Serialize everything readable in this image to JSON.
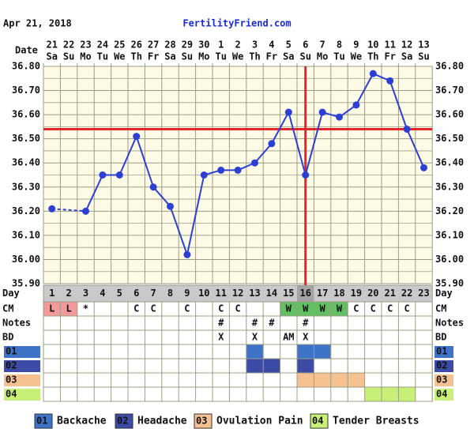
{
  "chart_data": {
    "type": "line",
    "header_date": "Apr 21, 2018",
    "site": "FertilityFriend.com",
    "date_label": "Date",
    "day_label": "Day",
    "dates": [
      "21",
      "22",
      "23",
      "24",
      "25",
      "26",
      "27",
      "28",
      "29",
      "30",
      "1",
      "2",
      "3",
      "4",
      "5",
      "6",
      "7",
      "8",
      "9",
      "10",
      "11",
      "12",
      "13"
    ],
    "weekdays": [
      "Sa",
      "Su",
      "Mo",
      "Tu",
      "We",
      "Th",
      "Fr",
      "Sa",
      "Su",
      "Mo",
      "Tu",
      "We",
      "Th",
      "Fr",
      "Sa",
      "Su",
      "Mo",
      "Tu",
      "We",
      "Th",
      "Fr",
      "Sa",
      "Su"
    ],
    "days": [
      1,
      2,
      3,
      4,
      5,
      6,
      7,
      8,
      9,
      10,
      11,
      12,
      13,
      14,
      15,
      16,
      17,
      18,
      19,
      20,
      21,
      22,
      23
    ],
    "values": [
      36.21,
      null,
      36.2,
      36.35,
      36.35,
      36.51,
      36.3,
      36.22,
      36.02,
      36.35,
      36.37,
      36.37,
      36.4,
      36.48,
      36.61,
      36.35,
      36.61,
      36.59,
      36.64,
      36.77,
      36.74,
      36.54,
      36.38
    ],
    "color": "#2b3fd6",
    "coverline": 36.54,
    "coverline_color": "#e3262b",
    "ovulation_day": 16,
    "ylim": [
      35.9,
      36.8
    ],
    "yticks": [
      {
        "value": 35.9,
        "label": "35.90"
      },
      {
        "value": 36.0,
        "label": "36.00"
      },
      {
        "value": 36.1,
        "label": "36.10"
      },
      {
        "value": 36.2,
        "label": "36.20"
      },
      {
        "value": 36.3,
        "label": "36.30"
      },
      {
        "value": 36.4,
        "label": "36.40"
      },
      {
        "value": 36.5,
        "label": "36.50"
      },
      {
        "value": 36.6,
        "label": "36.60"
      },
      {
        "value": 36.7,
        "label": "36.70"
      },
      {
        "value": 36.8,
        "label": "36.80"
      }
    ],
    "grid": true,
    "rows": [
      {
        "label": "CM",
        "cells": [
          "L",
          "L",
          "*",
          null,
          null,
          "C",
          "C",
          null,
          "C",
          null,
          "C",
          "C",
          null,
          null,
          "W",
          "W",
          "W",
          "W",
          "C",
          "C",
          "C",
          "C",
          null
        ],
        "colors": {
          "L": "#f29a9a",
          "W": "#62bf62"
        }
      },
      {
        "label": "Notes",
        "cells": [
          null,
          null,
          null,
          null,
          null,
          null,
          null,
          null,
          null,
          null,
          "#",
          null,
          "#",
          "#",
          null,
          "#",
          null,
          null,
          null,
          null,
          null,
          null,
          null
        ]
      },
      {
        "label": "BD",
        "cells": [
          null,
          null,
          null,
          null,
          null,
          null,
          null,
          null,
          null,
          null,
          "X",
          null,
          "X",
          null,
          "AM",
          "X",
          null,
          null,
          null,
          null,
          null,
          null,
          null
        ]
      }
    ],
    "symptoms": [
      {
        "code": "01",
        "name": "Backache",
        "color": "#3f73c8",
        "days": [
          13,
          16,
          17
        ]
      },
      {
        "code": "02",
        "name": "Headache",
        "color": "#3c4ba6",
        "days": [
          13,
          14,
          16
        ]
      },
      {
        "code": "03",
        "name": "Ovulation Pain",
        "color": "#f6c190",
        "days": [
          16,
          17,
          18,
          19
        ]
      },
      {
        "code": "04",
        "name": "Tender Breasts",
        "color": "#c8ef78",
        "days": [
          20,
          21,
          22
        ]
      }
    ]
  }
}
